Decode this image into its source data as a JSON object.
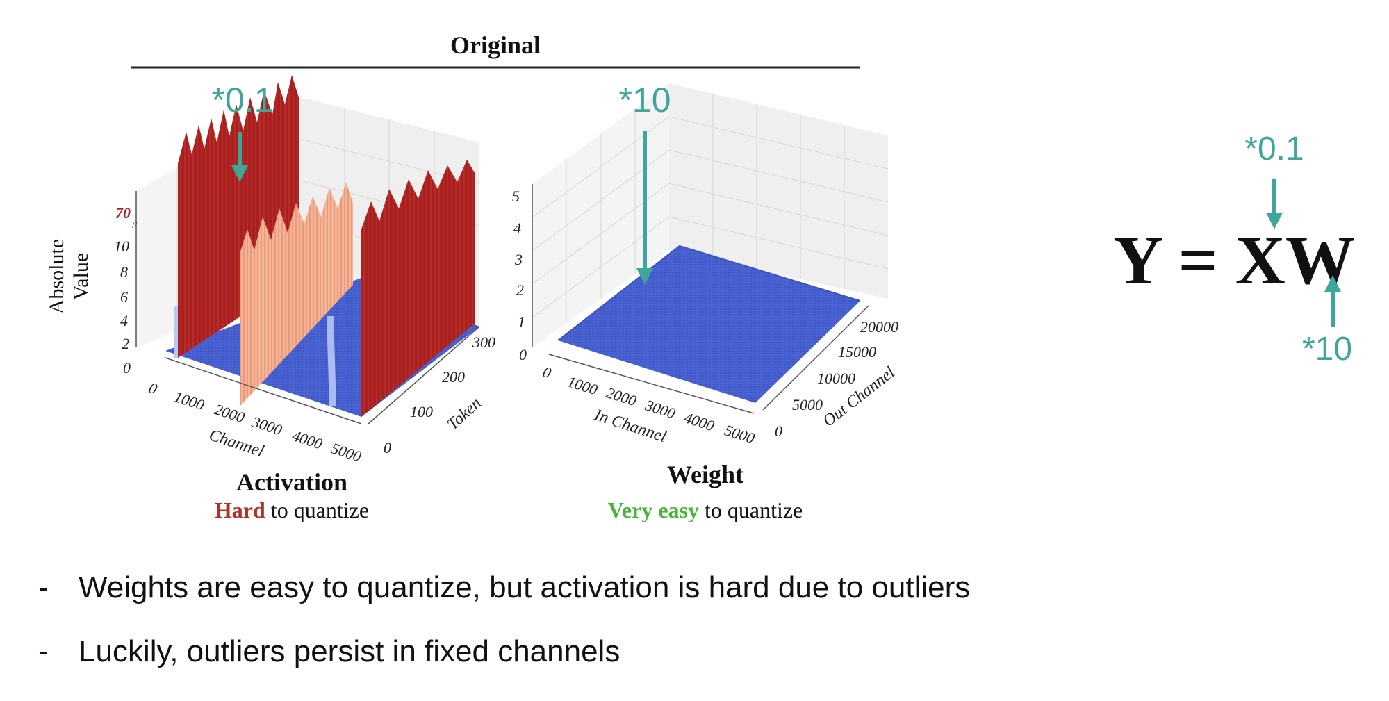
{
  "title": "Original",
  "colors": {
    "teal": "#3fa79a",
    "dark_red": "#a52222",
    "salmon": "#f0a080",
    "blue": "#4a62d0",
    "light_blue": "#9fb6f2",
    "green": "#4bb33a",
    "hard_red": "#b3302a"
  },
  "activation": {
    "scale_label": "*0.1",
    "z_axis_label_line1": "Absolute",
    "z_axis_label_line2": "Value",
    "z_ticks": [
      "0",
      "2",
      "4",
      "6",
      "8",
      "10",
      "70"
    ],
    "channel_ticks": [
      "0",
      "1000",
      "2000",
      "3000",
      "4000",
      "5000"
    ],
    "channel_label": "Channel",
    "token_ticks": [
      "0",
      "100",
      "200",
      "300"
    ],
    "token_label": "Token",
    "caption_title": "Activation",
    "caption_emph": "Hard",
    "caption_rest": " to quantize"
  },
  "weight": {
    "scale_label": "*10",
    "z_ticks": [
      "0",
      "1",
      "2",
      "3",
      "4",
      "5"
    ],
    "in_ticks": [
      "0",
      "1000",
      "2000",
      "3000",
      "4000",
      "5000"
    ],
    "in_label": "In Channel",
    "out_ticks": [
      "0",
      "5000",
      "10000",
      "15000",
      "20000"
    ],
    "out_label": "Out Channel",
    "caption_title": "Weight",
    "caption_emph": "Very easy",
    "caption_rest": " to quantize"
  },
  "equation": {
    "text": "Y = XW",
    "top_scale": "*0.1",
    "bottom_scale": "*10"
  },
  "bullets": [
    "Weights are easy to quantize, but activation is hard due to outliers",
    "Luckily, outliers persist in fixed channels"
  ]
}
